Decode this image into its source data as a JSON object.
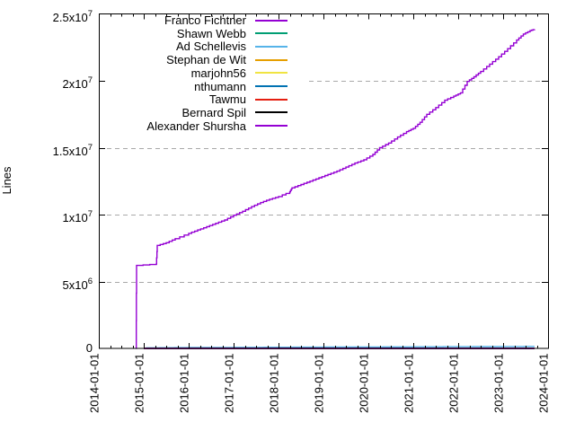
{
  "chart_data": {
    "type": "line",
    "title": "",
    "ylabel": "Lines",
    "xlabel": "",
    "grid": {
      "horizontal": true,
      "vertical": false,
      "style": "dashed",
      "color": "#a9a9a9"
    },
    "legend_position": "top-left-inside",
    "x_axis": {
      "kind": "date",
      "range_years": [
        0,
        10
      ],
      "tick_positions_years": [
        0,
        1,
        2,
        3,
        4,
        5,
        6,
        7,
        8,
        9,
        10
      ],
      "tick_labels": [
        "2014-01-01",
        "2015-01-01",
        "2016-01-01",
        "2017-01-01",
        "2018-01-01",
        "2019-01-01",
        "2020-01-01",
        "2021-01-01",
        "2022-01-01",
        "2023-01-01",
        "2024-01-01"
      ],
      "minor_tick_interval_years": 0.25
    },
    "y_axis": {
      "range": [
        0,
        25000000
      ],
      "ticks": [
        {
          "label": "0",
          "base": "0",
          "exp": "",
          "value": 0
        },
        {
          "label": "5x10^6",
          "base": "5x10",
          "exp": "6",
          "value": 5000000
        },
        {
          "label": "1x10^7",
          "base": "1x10",
          "exp": "7",
          "value": 10000000
        },
        {
          "label": "1.5x10^7",
          "base": "1.5x10",
          "exp": "7",
          "value": 15000000
        },
        {
          "label": "2x10^7",
          "base": "2x10",
          "exp": "7",
          "value": 20000000
        },
        {
          "label": "2.5x10^7",
          "base": "2.5x10",
          "exp": "7",
          "value": 25000000
        }
      ]
    },
    "series": [
      {
        "name": "Franco Fichtner",
        "color": "#9400d3",
        "points": [
          [
            0.83,
            0
          ],
          [
            0.84,
            6200000
          ],
          [
            1.28,
            6300000
          ],
          [
            1.3,
            7700000
          ],
          [
            1.5,
            7900000
          ],
          [
            1.7,
            8200000
          ],
          [
            2.0,
            8600000
          ],
          [
            2.2,
            8850000
          ],
          [
            2.4,
            9100000
          ],
          [
            2.6,
            9350000
          ],
          [
            2.8,
            9600000
          ],
          [
            3.0,
            9950000
          ],
          [
            3.2,
            10250000
          ],
          [
            3.4,
            10600000
          ],
          [
            3.6,
            10900000
          ],
          [
            3.8,
            11150000
          ],
          [
            4.0,
            11350000
          ],
          [
            4.25,
            11700000
          ],
          [
            4.3,
            12000000
          ],
          [
            4.5,
            12250000
          ],
          [
            4.7,
            12500000
          ],
          [
            4.9,
            12750000
          ],
          [
            5.1,
            13000000
          ],
          [
            5.3,
            13250000
          ],
          [
            5.5,
            13550000
          ],
          [
            5.7,
            13850000
          ],
          [
            5.9,
            14100000
          ],
          [
            6.1,
            14500000
          ],
          [
            6.25,
            15000000
          ],
          [
            6.45,
            15350000
          ],
          [
            6.65,
            15800000
          ],
          [
            6.85,
            16200000
          ],
          [
            7.0,
            16450000
          ],
          [
            7.15,
            16900000
          ],
          [
            7.3,
            17500000
          ],
          [
            7.5,
            18000000
          ],
          [
            7.7,
            18550000
          ],
          [
            7.9,
            18850000
          ],
          [
            8.05,
            19100000
          ],
          [
            8.2,
            19950000
          ],
          [
            8.35,
            20300000
          ],
          [
            8.5,
            20700000
          ],
          [
            8.7,
            21250000
          ],
          [
            8.9,
            21800000
          ],
          [
            9.1,
            22400000
          ],
          [
            9.3,
            23050000
          ],
          [
            9.45,
            23500000
          ],
          [
            9.6,
            23750000
          ],
          [
            9.7,
            23850000
          ]
        ]
      },
      {
        "name": "Shawn Webb",
        "color": "#009e73",
        "points": [
          [
            1.0,
            0
          ],
          [
            9.7,
            0
          ]
        ]
      },
      {
        "name": "Ad Schellevis",
        "color": "#56b4e9",
        "points": [
          [
            1.05,
            50000
          ],
          [
            2,
            70000
          ],
          [
            3,
            80000
          ],
          [
            4,
            90000
          ],
          [
            5,
            100000
          ],
          [
            6,
            110000
          ],
          [
            7,
            120000
          ],
          [
            8,
            130000
          ],
          [
            9,
            140000
          ],
          [
            9.7,
            150000
          ]
        ]
      },
      {
        "name": "Stephan de Wit",
        "color": "#e69f00",
        "points": [
          [
            1.0,
            0
          ],
          [
            9.7,
            0
          ]
        ]
      },
      {
        "name": "marjohn56",
        "color": "#f0e442",
        "points": [
          [
            1.0,
            0
          ],
          [
            9.7,
            0
          ]
        ]
      },
      {
        "name": "nthumann",
        "color": "#0072b2",
        "points": [
          [
            1.0,
            0
          ],
          [
            9.7,
            0
          ]
        ]
      },
      {
        "name": "Tawmu",
        "color": "#e51e10",
        "points": [
          [
            1.0,
            0
          ],
          [
            9.7,
            0
          ]
        ]
      },
      {
        "name": "Bernard Spil",
        "color": "#000000",
        "points": [
          [
            1.0,
            0
          ],
          [
            9.7,
            0
          ]
        ]
      },
      {
        "name": "Alexander Shursha",
        "color": "#9400d3",
        "points": [
          [
            1.0,
            0
          ],
          [
            9.7,
            0
          ]
        ]
      }
    ]
  }
}
